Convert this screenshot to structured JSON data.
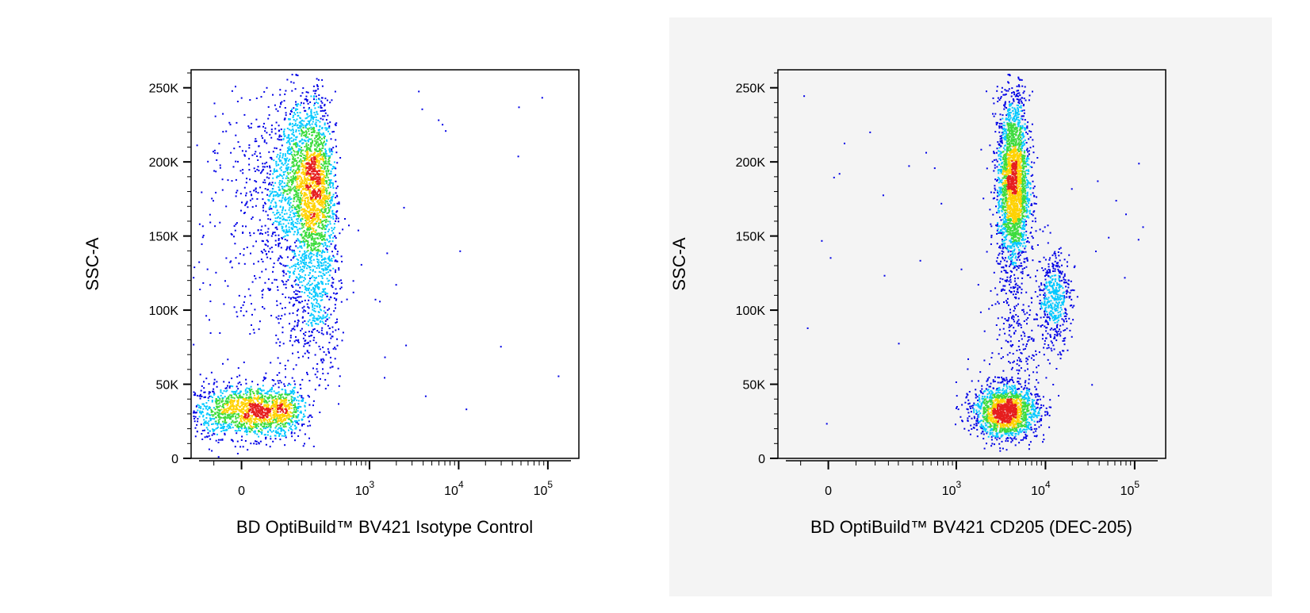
{
  "colors": {
    "density_low": "#0000e6",
    "density_mid1": "#00c8ff",
    "density_mid2": "#3cdc3c",
    "density_mid3": "#ffd200",
    "density_high": "#e61e1e",
    "right_panel_background": "#f4f4f4"
  },
  "chart_data": [
    {
      "type": "scatter",
      "title": "",
      "xlabel": "BD OptiBuild™ BV421 Isotype Control",
      "ylabel": "SSC-A",
      "x_scale": "biexponential",
      "xlim": [
        -200,
        200000
      ],
      "ylim": [
        0,
        262144
      ],
      "x_ticks": [
        {
          "value": 0,
          "base": "0",
          "exp": ""
        },
        {
          "value": 1000,
          "base": "10",
          "exp": "3"
        },
        {
          "value": 10000,
          "base": "10",
          "exp": "4"
        },
        {
          "value": 100000,
          "base": "10",
          "exp": "5"
        }
      ],
      "y_ticks": [
        {
          "value": 0,
          "label": "0"
        },
        {
          "value": 50000,
          "label": "50K"
        },
        {
          "value": 100000,
          "label": "100K"
        },
        {
          "value": 150000,
          "label": "150K"
        },
        {
          "value": 200000,
          "label": "200K"
        },
        {
          "value": 250000,
          "label": "250K"
        }
      ],
      "coloring": "density (blue low → red high)",
      "populations": [
        {
          "x_center": 20,
          "x_spread": 60,
          "y_center": 32000,
          "y_spread": 9000,
          "events": 1600
        },
        {
          "x_center": 170,
          "x_spread": 90,
          "y_center": 185000,
          "y_spread": 30000,
          "events": 2600
        },
        {
          "x_center": 200,
          "x_spread": 120,
          "y_center": 110000,
          "y_spread": 30000,
          "events": 700
        }
      ]
    },
    {
      "type": "scatter",
      "title": "",
      "xlabel": "BD OptiBuild™ BV421 CD205 (DEC-205)",
      "ylabel": "SSC-A",
      "x_scale": "biexponential",
      "xlim": [
        -200,
        200000
      ],
      "ylim": [
        0,
        262144
      ],
      "x_ticks": [
        {
          "value": 0,
          "base": "0",
          "exp": ""
        },
        {
          "value": 1000,
          "base": "10",
          "exp": "3"
        },
        {
          "value": 10000,
          "base": "10",
          "exp": "4"
        },
        {
          "value": 100000,
          "base": "10",
          "exp": "5"
        }
      ],
      "y_ticks": [
        {
          "value": 0,
          "label": "0"
        },
        {
          "value": 50000,
          "label": "50K"
        },
        {
          "value": 100000,
          "label": "100K"
        },
        {
          "value": 150000,
          "label": "150K"
        },
        {
          "value": 200000,
          "label": "200K"
        },
        {
          "value": 250000,
          "label": "250K"
        }
      ],
      "coloring": "density (blue low → red high)",
      "populations": [
        {
          "x_center": 3500,
          "x_spread_log": 0.18,
          "y_center": 32000,
          "y_spread": 9000,
          "events": 1600
        },
        {
          "x_center": 4300,
          "x_spread_log": 0.09,
          "y_center": 185000,
          "y_spread": 30000,
          "events": 2400
        },
        {
          "x_center": 12500,
          "x_spread_log": 0.09,
          "y_center": 108000,
          "y_spread": 16000,
          "events": 450
        },
        {
          "x_center": 5000,
          "x_spread_log": 0.18,
          "y_center": 80000,
          "y_spread": 25000,
          "events": 250
        }
      ]
    }
  ]
}
